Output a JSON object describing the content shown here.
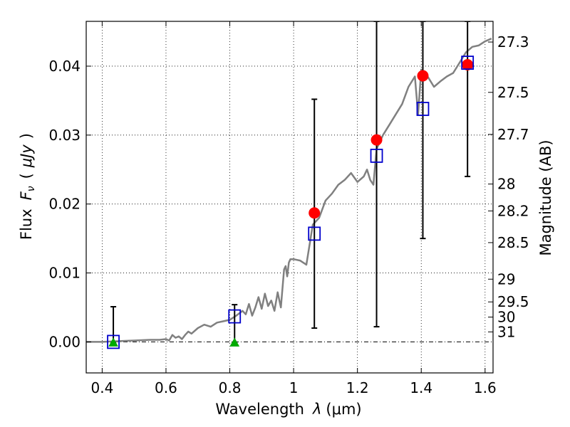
{
  "chart_data": {
    "type": "scatter",
    "xlabel": "Wavelength  λ (μm)",
    "ylabel": "Flux  Fν  ( μJy )",
    "ylabel_parts": {
      "prefix": "Flux",
      "var_main": "F",
      "var_sub": "ν",
      "open": "(",
      "unit": "μJy",
      "close": ")"
    },
    "xlabel_parts": {
      "prefix": "Wavelength",
      "var": "λ",
      "unit": "(μm)"
    },
    "y2label": "Magnitude (AB)",
    "xlim": [
      0.35,
      1.625
    ],
    "ylim": [
      -0.0045,
      0.0465
    ],
    "grid": true,
    "x_ticks": [
      0.4,
      0.6,
      0.8,
      1.0,
      1.2,
      1.4,
      1.6
    ],
    "x_tick_labels": [
      "0.4",
      "0.6",
      "0.8",
      "1",
      "1.2",
      "1.4",
      "1.6"
    ],
    "y_ticks": [
      0.0,
      0.01,
      0.02,
      0.03,
      0.04
    ],
    "y_tick_labels": [
      "0.00",
      "0.01",
      "0.02",
      "0.03",
      "0.04"
    ],
    "mag_ticks": [
      {
        "label": "27.3",
        "flux": 0.0435
      },
      {
        "label": "27.5",
        "flux": 0.0362
      },
      {
        "label": "27.7",
        "flux": 0.0301
      },
      {
        "label": "28",
        "flux": 0.0229
      },
      {
        "label": "28.2",
        "flux": 0.019
      },
      {
        "label": "28.5",
        "flux": 0.0144
      },
      {
        "label": "29",
        "flux": 0.0091
      },
      {
        "label": "29.5",
        "flux": 0.0058
      },
      {
        "label": "30",
        "flux": 0.0036
      },
      {
        "label": "31",
        "flux": 0.00145
      }
    ],
    "colors": {
      "spectrum": "#808080",
      "observed": "#ff0000",
      "model": "#0000cc",
      "upper_limit": "#00aa00",
      "errorbar": "#000000",
      "grid": "#000000"
    },
    "series": [
      {
        "role": "spectrum",
        "x": [
          0.35,
          0.4,
          0.45,
          0.5,
          0.55,
          0.58,
          0.6,
          0.61,
          0.62,
          0.63,
          0.64,
          0.65,
          0.66,
          0.67,
          0.68,
          0.7,
          0.72,
          0.74,
          0.76,
          0.78,
          0.8,
          0.82,
          0.84,
          0.85,
          0.86,
          0.87,
          0.88,
          0.89,
          0.9,
          0.91,
          0.92,
          0.93,
          0.94,
          0.95,
          0.96,
          0.97,
          0.975,
          0.98,
          0.985,
          0.99,
          1.0,
          1.02,
          1.04,
          1.06,
          1.08,
          1.1,
          1.12,
          1.14,
          1.16,
          1.18,
          1.2,
          1.22,
          1.23,
          1.24,
          1.25,
          1.26,
          1.28,
          1.3,
          1.32,
          1.34,
          1.36,
          1.38,
          1.39,
          1.4,
          1.42,
          1.44,
          1.46,
          1.48,
          1.5,
          1.52,
          1.54,
          1.56,
          1.58,
          1.6,
          1.62
        ],
        "y": [
          0.0,
          0.0,
          0.0001,
          0.0002,
          0.0003,
          0.0003,
          0.0004,
          0.0002,
          0.001,
          0.0006,
          0.0008,
          0.0004,
          0.001,
          0.0015,
          0.0012,
          0.002,
          0.0025,
          0.0022,
          0.0028,
          0.003,
          0.0032,
          0.0038,
          0.0045,
          0.004,
          0.0055,
          0.0038,
          0.005,
          0.0065,
          0.0048,
          0.007,
          0.0052,
          0.006,
          0.0045,
          0.0072,
          0.005,
          0.0105,
          0.011,
          0.0095,
          0.0115,
          0.012,
          0.012,
          0.0118,
          0.0112,
          0.017,
          0.018,
          0.0205,
          0.0215,
          0.0228,
          0.0235,
          0.0245,
          0.0232,
          0.024,
          0.025,
          0.0235,
          0.0228,
          0.028,
          0.03,
          0.0315,
          0.033,
          0.0345,
          0.037,
          0.0385,
          0.033,
          0.0395,
          0.0385,
          0.037,
          0.0378,
          0.0385,
          0.039,
          0.0405,
          0.042,
          0.0428,
          0.043,
          0.0436,
          0.044
        ]
      },
      {
        "role": "model",
        "x": [
          0.435,
          0.815,
          1.065,
          1.26,
          1.405,
          1.545
        ],
        "y": [
          0.0,
          0.0037,
          0.0157,
          0.027,
          0.0338,
          0.0405
        ]
      },
      {
        "role": "observed",
        "x": [
          1.065,
          1.26,
          1.405,
          1.545
        ],
        "y": [
          0.0187,
          0.0293,
          0.0386,
          0.0402
        ],
        "yerr_low": [
          0.002,
          0.0022,
          0.015,
          0.024
        ],
        "yerr_high": [
          0.0352,
          0.0465,
          0.0465,
          0.0465
        ]
      },
      {
        "role": "upper_limit",
        "x": [
          0.435,
          0.815
        ],
        "y": [
          -0.0001,
          -0.0001
        ],
        "yerr_low": [
          -0.0001,
          -0.0001
        ],
        "yerr_high": [
          0.0051,
          0.0054
        ]
      }
    ]
  }
}
